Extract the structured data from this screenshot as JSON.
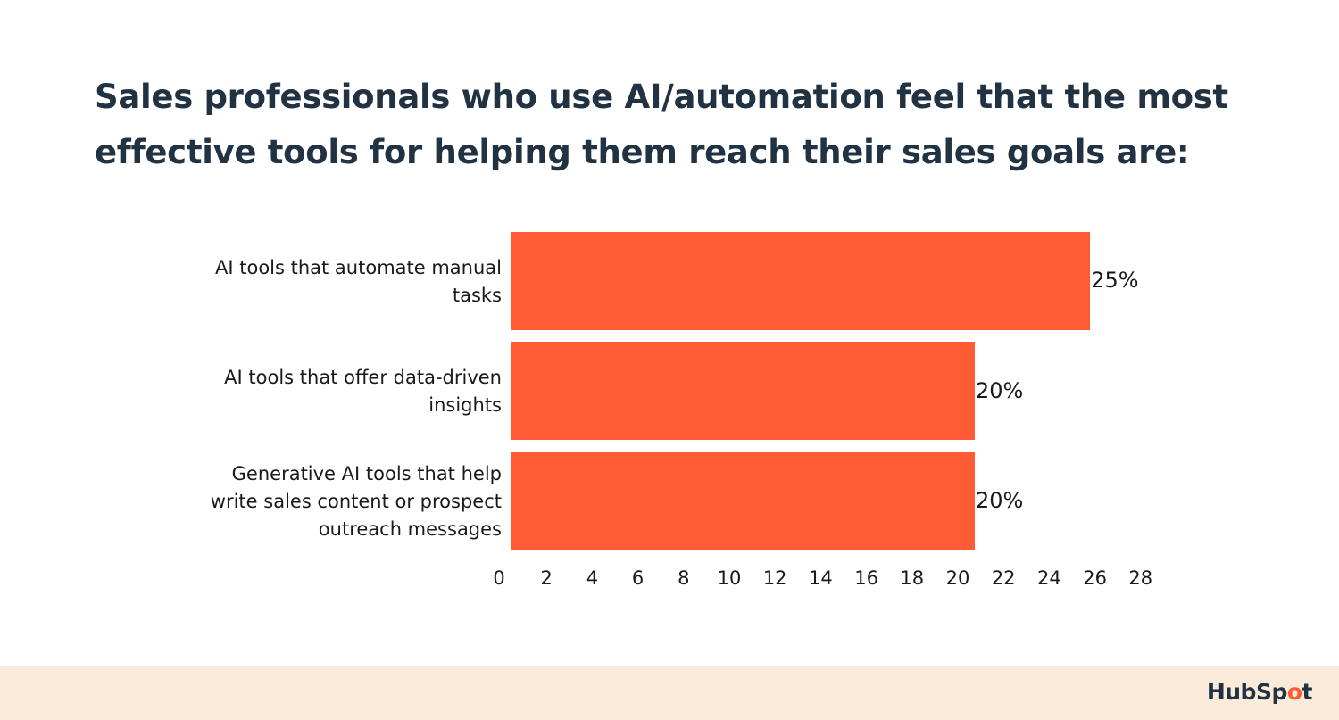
{
  "title": "Sales professionals who use AI/automation feel that the most effective tools for helping them reach their sales goals are:",
  "chart_data": {
    "type": "bar",
    "orientation": "horizontal",
    "title": "Sales professionals who use AI/automation feel that the most effective tools for helping them reach their sales goals are:",
    "categories": [
      "AI tools that automate manual tasks",
      "AI tools that offer data-driven insights",
      "Generative AI tools that help write sales content or prospect outreach messages"
    ],
    "values": [
      25,
      20,
      20
    ],
    "data_labels": [
      "25%",
      "20%",
      "20%"
    ],
    "xlabel": "",
    "ylabel": "",
    "xlim": [
      0,
      28
    ],
    "x_ticks": [
      0,
      2,
      4,
      6,
      8,
      10,
      12,
      14,
      16,
      18,
      20,
      22,
      24,
      26,
      28
    ],
    "grid": false,
    "legend": null,
    "bar_color": "#ff5c35"
  },
  "labels": {
    "cat0_line1": "AI tools that automate manual",
    "cat0_line2": "tasks",
    "cat1_line1": "AI tools that offer data-driven",
    "cat1_line2": "insights",
    "cat2_line1": "Generative AI tools that help",
    "cat2_line2": "write sales content or prospect",
    "cat2_line3": "outreach messages"
  },
  "footer": {
    "brand_prefix": "HubSp",
    "brand_o": "o",
    "brand_suffix": "t"
  }
}
